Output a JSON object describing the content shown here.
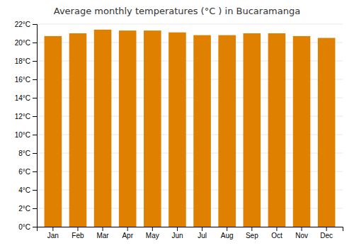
{
  "chart_data": {
    "type": "bar",
    "title": "Average monthly temperatures (°C ) in Bucaramanga",
    "categories": [
      "Jan",
      "Feb",
      "Mar",
      "Apr",
      "May",
      "Jun",
      "Jul",
      "Aug",
      "Sep",
      "Oct",
      "Nov",
      "Dec"
    ],
    "values": [
      20.7,
      21.0,
      21.4,
      21.3,
      21.3,
      21.1,
      20.8,
      20.8,
      21.0,
      21.0,
      20.7,
      20.5
    ],
    "color": "#E08000",
    "ylim": [
      0,
      22
    ],
    "yticks": [
      {
        "value": 0,
        "label": "0°C"
      },
      {
        "value": 2,
        "label": "2°C"
      },
      {
        "value": 4,
        "label": "4°C"
      },
      {
        "value": 6,
        "label": "6°C"
      },
      {
        "value": 8,
        "label": "8°C"
      },
      {
        "value": 10,
        "label": "10°C"
      },
      {
        "value": 12,
        "label": "12°C"
      },
      {
        "value": 14,
        "label": "14°C"
      },
      {
        "value": 16,
        "label": "16°C"
      },
      {
        "value": 18,
        "label": "18°C"
      },
      {
        "value": 20,
        "label": "20°C"
      },
      {
        "value": 22,
        "label": "22°C"
      }
    ],
    "grid": true
  }
}
